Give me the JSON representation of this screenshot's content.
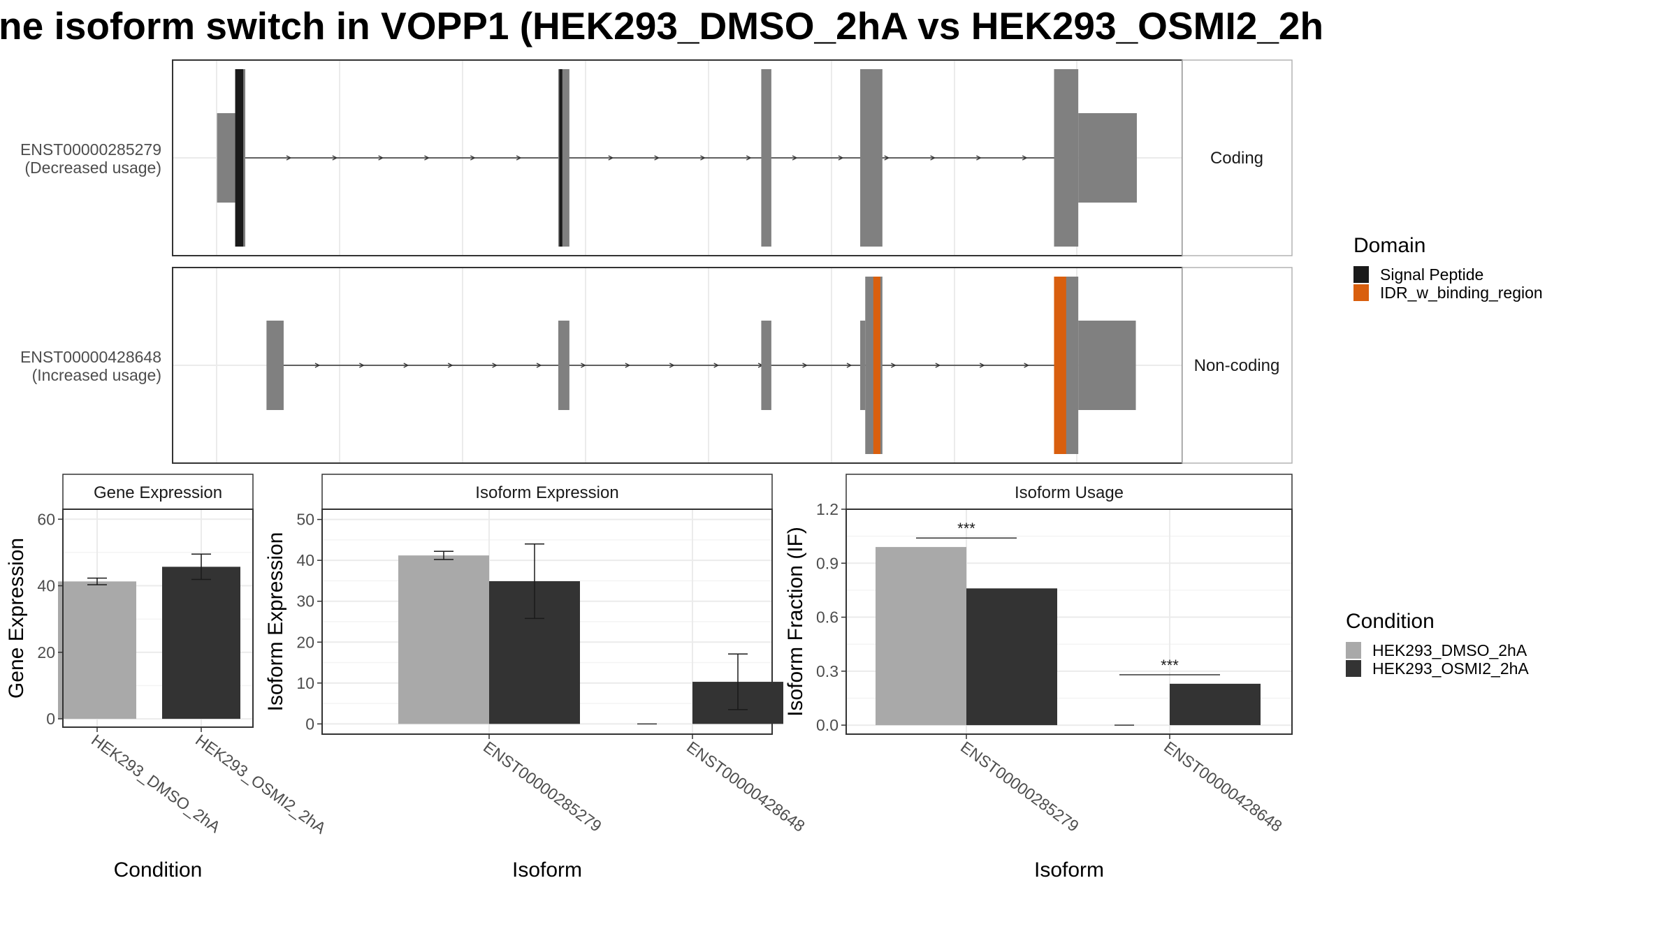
{
  "title": "ne isoform switch in VOPP1 (HEK293_DMSO_2hA vs HEK293_OSMI2_2h",
  "colors": {
    "exon": "#808080",
    "signal_peptide": "#1a1a1a",
    "idr": "#d95f0e",
    "dmso": "#a9a9a9",
    "osmi": "#333333",
    "panel_border": "#333333",
    "strip_border": "#b3b3b3",
    "grid": "#ebebeb",
    "axis_text": "#4d4d4d"
  },
  "legend_domain": {
    "title": "Domain",
    "items": [
      {
        "label": "Signal Peptide",
        "color": "#1a1a1a"
      },
      {
        "label": "IDR_w_binding_region",
        "color": "#d95f0e"
      }
    ]
  },
  "legend_condition": {
    "title": "Condition",
    "items": [
      {
        "label": "HEK293_DMSO_2hA",
        "color": "#a9a9a9"
      },
      {
        "label": "HEK293_OSMI2_2hA",
        "color": "#333333"
      }
    ]
  },
  "chart_data": [
    {
      "type": "gene_structure",
      "x_domain": [
        0,
        1000
      ],
      "tracks": [
        {
          "id": "ENST00000285279",
          "label_line1": "ENST00000285279",
          "label_line2": "(Decreased usage)",
          "strip": "Coding",
          "intron": [
            70,
            890
          ],
          "exons": [
            {
              "start": 44,
              "end": 62,
              "kind": "utr"
            },
            {
              "start": 62,
              "end": 72,
              "kind": "cds"
            },
            {
              "start": 382,
              "end": 393,
              "kind": "cds"
            },
            {
              "start": 583,
              "end": 593,
              "kind": "cds"
            },
            {
              "start": 681,
              "end": 703,
              "kind": "cds"
            },
            {
              "start": 873,
              "end": 897,
              "kind": "cds"
            },
            {
              "start": 897,
              "end": 955,
              "kind": "utr"
            }
          ],
          "domains": [
            {
              "start": 62,
              "end": 70,
              "type": "Signal Peptide"
            },
            {
              "start": 383,
              "end": 386,
              "type": "Signal Peptide"
            }
          ]
        },
        {
          "id": "ENST00000428648",
          "label_line1": "ENST00000428648",
          "label_line2": "(Increased usage)",
          "strip": "Non-coding",
          "intron": [
            100,
            890
          ],
          "exons": [
            {
              "start": 93,
              "end": 110,
              "kind": "utr"
            },
            {
              "start": 382,
              "end": 393,
              "kind": "utr"
            },
            {
              "start": 583,
              "end": 593,
              "kind": "utr"
            },
            {
              "start": 681,
              "end": 686,
              "kind": "utr"
            },
            {
              "start": 686,
              "end": 703,
              "kind": "cds"
            },
            {
              "start": 873,
              "end": 897,
              "kind": "cds"
            },
            {
              "start": 897,
              "end": 954,
              "kind": "utr"
            }
          ],
          "domains": [
            {
              "start": 694,
              "end": 701,
              "type": "IDR_w_binding_region"
            },
            {
              "start": 873,
              "end": 885,
              "type": "IDR_w_binding_region"
            }
          ]
        }
      ]
    },
    {
      "type": "bar",
      "title": "Gene Expression",
      "xlabel": "Condition",
      "ylabel": "Gene Expression",
      "ylim": [
        -2.5,
        63
      ],
      "yticks": [
        0,
        20,
        40,
        60
      ],
      "categories": [
        "HEK293_DMSO_2hA",
        "HEK293_OSMI2_2hA"
      ],
      "values": [
        41.3,
        45.7
      ],
      "errors": [
        [
          40.3,
          42.3
        ],
        [
          41.9,
          49.5
        ]
      ],
      "grid": true
    },
    {
      "type": "bar",
      "title": "Isoform Expression",
      "xlabel": "Isoform",
      "ylabel": "Isoform Expression",
      "ylim": [
        -2.5,
        52.5
      ],
      "yticks": [
        0,
        10,
        20,
        30,
        40,
        50
      ],
      "categories": [
        "ENST00000285279",
        "ENST00000428648"
      ],
      "series": [
        {
          "name": "HEK293_DMSO_2hA",
          "values": [
            41.2,
            0.0
          ],
          "errors": [
            [
              40.2,
              42.2
            ],
            [
              0,
              0
            ]
          ]
        },
        {
          "name": "HEK293_OSMI2_2hA",
          "values": [
            34.9,
            10.3
          ],
          "errors": [
            [
              25.8,
              44.0
            ],
            [
              3.5,
              17.1
            ]
          ]
        }
      ],
      "grid": true
    },
    {
      "type": "bar",
      "title": "Isoform Usage",
      "xlabel": "Isoform",
      "ylabel": "Isoform Fraction (IF)",
      "ylim": [
        -0.05,
        1.2
      ],
      "yticks": [
        0.0,
        0.3,
        0.6,
        0.9,
        1.2
      ],
      "ytick_labels": [
        "0.0",
        "0.3",
        "0.6",
        "0.9",
        "1.2"
      ],
      "categories": [
        "ENST00000285279",
        "ENST00000428648"
      ],
      "series": [
        {
          "name": "HEK293_DMSO_2hA",
          "values": [
            0.99,
            0.0
          ]
        },
        {
          "name": "HEK293_OSMI2_2hA",
          "values": [
            0.76,
            0.23
          ]
        }
      ],
      "significance": [
        {
          "category": 0,
          "label": "***",
          "y": 1.04
        },
        {
          "category": 1,
          "label": "***",
          "y": 0.28
        }
      ],
      "grid": true
    }
  ]
}
